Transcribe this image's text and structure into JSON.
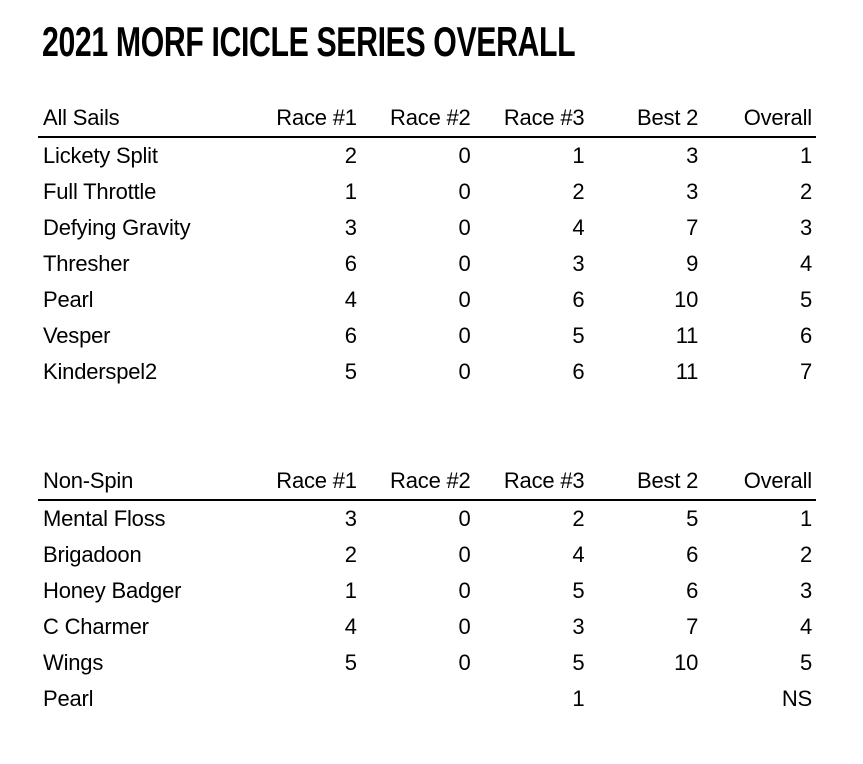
{
  "page": {
    "title": "2021 MORF ICICLE SERIES OVERALL"
  },
  "colors": {
    "text": "#000000",
    "background": "#ffffff",
    "header_rule": "#000000"
  },
  "tables": [
    {
      "label": "All Sails",
      "columns": [
        "Race #1",
        "Race #2",
        "Race #3",
        "Best 2",
        "Overall"
      ],
      "rows": [
        {
          "name": "Lickety Split",
          "values": [
            "2",
            "0",
            "1",
            "3",
            "1"
          ]
        },
        {
          "name": "Full Throttle",
          "values": [
            "1",
            "0",
            "2",
            "3",
            "2"
          ]
        },
        {
          "name": "Defying Gravity",
          "values": [
            "3",
            "0",
            "4",
            "7",
            "3"
          ]
        },
        {
          "name": "Thresher",
          "values": [
            "6",
            "0",
            "3",
            "9",
            "4"
          ]
        },
        {
          "name": "Pearl",
          "values": [
            "4",
            "0",
            "6",
            "10",
            "5"
          ]
        },
        {
          "name": "Vesper",
          "values": [
            "6",
            "0",
            "5",
            "11",
            "6"
          ]
        },
        {
          "name": "Kinderspel2",
          "values": [
            "5",
            "0",
            "6",
            "11",
            "7"
          ]
        }
      ]
    },
    {
      "label": "Non-Spin",
      "columns": [
        "Race #1",
        "Race #2",
        "Race #3",
        "Best 2",
        "Overall"
      ],
      "rows": [
        {
          "name": "Mental Floss",
          "values": [
            "3",
            "0",
            "2",
            "5",
            "1"
          ]
        },
        {
          "name": "Brigadoon",
          "values": [
            "2",
            "0",
            "4",
            "6",
            "2"
          ]
        },
        {
          "name": "Honey Badger",
          "values": [
            "1",
            "0",
            "5",
            "6",
            "3"
          ]
        },
        {
          "name": "C Charmer",
          "values": [
            "4",
            "0",
            "3",
            "7",
            "4"
          ]
        },
        {
          "name": "Wings",
          "values": [
            "5",
            "0",
            "5",
            "10",
            "5"
          ]
        },
        {
          "name": "Pearl",
          "values": [
            "",
            "",
            "1",
            "",
            "NS"
          ]
        }
      ]
    }
  ]
}
